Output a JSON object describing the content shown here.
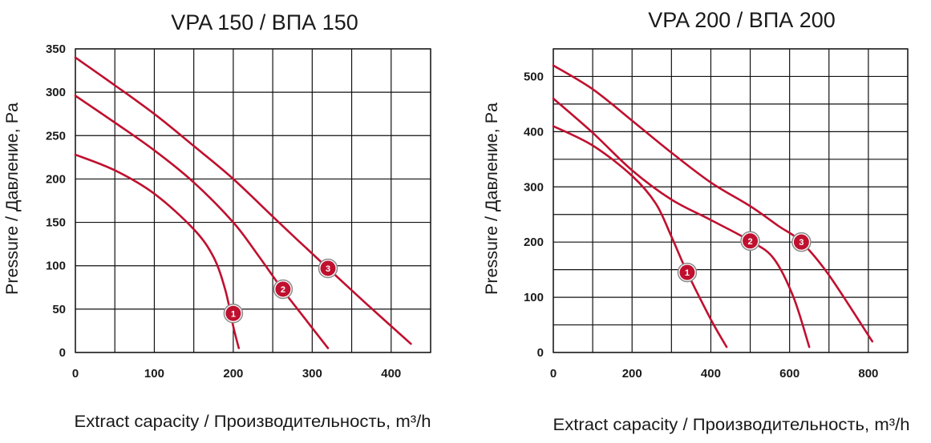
{
  "colors": {
    "curve": "#c0102f",
    "marker": "#c0102f",
    "grid": "#111111",
    "text": "#1a1a1a"
  },
  "chart_data": [
    {
      "type": "line",
      "title": "VPA 150 / ВПА 150",
      "xlabel": "Extract capacity / Производительность, m³/h",
      "ylabel": "Pressure / Давление, Pa",
      "xlim": [
        0,
        450
      ],
      "ylim": [
        0,
        350
      ],
      "xticks": [
        0,
        100,
        200,
        300,
        400
      ],
      "yticks": [
        0,
        50,
        100,
        150,
        200,
        250,
        300,
        350
      ],
      "grid": true,
      "series": [
        {
          "name": "1",
          "points": [
            [
              0,
              228
            ],
            [
              50,
              210
            ],
            [
              100,
              183
            ],
            [
              150,
              142
            ],
            [
              175,
              110
            ],
            [
              190,
              72
            ],
            [
              200,
              30
            ],
            [
              207,
              5
            ]
          ],
          "marker": [
            200,
            45
          ]
        },
        {
          "name": "2",
          "points": [
            [
              0,
              296
            ],
            [
              50,
              265
            ],
            [
              100,
              233
            ],
            [
              150,
              196
            ],
            [
              200,
              150
            ],
            [
              230,
              114
            ],
            [
              262,
              73
            ],
            [
              290,
              40
            ],
            [
              320,
              5
            ]
          ],
          "marker": [
            263,
            73
          ]
        },
        {
          "name": "3",
          "points": [
            [
              0,
              340
            ],
            [
              50,
              308
            ],
            [
              100,
              275
            ],
            [
              150,
              238
            ],
            [
              200,
              200
            ],
            [
              260,
              148
            ],
            [
              320,
              97
            ],
            [
              370,
              55
            ],
            [
              425,
              10
            ]
          ],
          "marker": [
            320,
            97
          ]
        }
      ]
    },
    {
      "type": "line",
      "title": "VPA 200 / ВПА 200",
      "xlabel": "Extract capacity / Производительность, m³/h",
      "ylabel": "Pressure / Давление, Pa",
      "xlim": [
        0,
        900
      ],
      "ylim": [
        0,
        550
      ],
      "xticks": [
        0,
        200,
        400,
        600,
        800
      ],
      "yticks": [
        0,
        100,
        200,
        300,
        400,
        500
      ],
      "grid": true,
      "series": [
        {
          "name": "1",
          "points": [
            [
              0,
              410
            ],
            [
              100,
              375
            ],
            [
              200,
              320
            ],
            [
              260,
              270
            ],
            [
              300,
              210
            ],
            [
              340,
              145
            ],
            [
              400,
              60
            ],
            [
              440,
              10
            ]
          ],
          "marker": [
            340,
            145
          ]
        },
        {
          "name": "2",
          "points": [
            [
              0,
              460
            ],
            [
              100,
              398
            ],
            [
              200,
              330
            ],
            [
              300,
              277
            ],
            [
              400,
              240
            ],
            [
              500,
              202
            ],
            [
              560,
              170
            ],
            [
              610,
              100
            ],
            [
              650,
              10
            ]
          ],
          "marker": [
            500,
            202
          ]
        },
        {
          "name": "3",
          "points": [
            [
              0,
              520
            ],
            [
              100,
              477
            ],
            [
              200,
              420
            ],
            [
              300,
              362
            ],
            [
              400,
              308
            ],
            [
              500,
              265
            ],
            [
              570,
              230
            ],
            [
              630,
              200
            ],
            [
              700,
              140
            ],
            [
              810,
              20
            ]
          ],
          "marker": [
            630,
            200
          ]
        }
      ]
    }
  ]
}
